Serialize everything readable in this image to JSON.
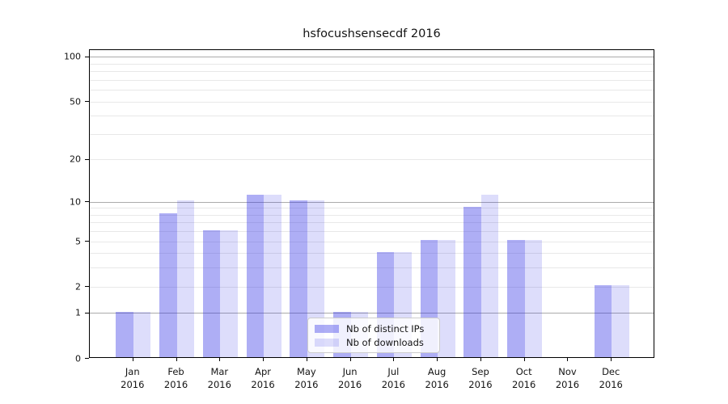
{
  "chart_data": {
    "type": "bar",
    "title": "hsfocushsensecdf 2016",
    "categories": [
      "Jan",
      "Feb",
      "Mar",
      "Apr",
      "May",
      "Jun",
      "Jul",
      "Aug",
      "Sep",
      "Oct",
      "Nov",
      "Dec"
    ],
    "x_tick_year": "2016",
    "series": [
      {
        "name": "Nb of distinct IPs",
        "key": "distinct-ips",
        "color": "rgba(42,42,230,0.38)",
        "values": [
          1,
          8,
          6,
          11,
          10,
          1,
          4,
          5,
          9,
          5,
          0,
          2
        ]
      },
      {
        "name": "Nb of downloads",
        "key": "downloads",
        "color": "rgba(42,42,230,0.16)",
        "values": [
          1,
          10,
          6,
          11,
          10,
          1,
          4,
          5,
          11,
          5,
          0,
          2
        ]
      }
    ],
    "yscale": "log10(1+y)",
    "ylim": [
      0,
      112
    ],
    "y_tick_values": [
      0,
      1,
      2,
      5,
      10,
      20,
      50,
      100
    ],
    "y_tick_labels": [
      "0",
      "1",
      "2",
      "5",
      "10",
      "20",
      "50",
      "100"
    ],
    "y_major_gridlines": [
      1,
      10,
      100
    ],
    "y_minor_gridlines": [
      2,
      3,
      4,
      5,
      6,
      7,
      8,
      9,
      20,
      30,
      40,
      50,
      60,
      70,
      80,
      90
    ],
    "grid": "on",
    "legend": {
      "position": "lower center"
    },
    "colors": {
      "major_grid": "#ababab",
      "minor_grid": "#e8e8e8",
      "spine": "#000000",
      "text": "#141414",
      "background": "#ffffff"
    }
  }
}
